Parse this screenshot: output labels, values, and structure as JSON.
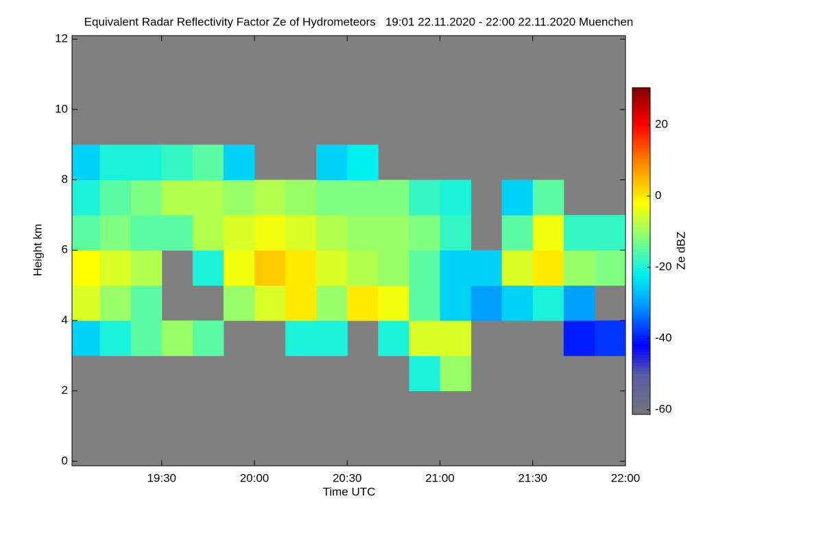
{
  "chart_data": {
    "type": "heatmap",
    "title": "Equivalent Radar Reflectivity Factor Ze of Hydrometeors   19:01 22.11.2020 - 22:00 22.11.2020 Muenchen",
    "x_label": "Time UTC",
    "y_label": "Height km",
    "colorbar_label": "Ze dBZ",
    "xlim": [
      1141,
      1320
    ],
    "xticks": [
      {
        "value": 1170,
        "label": "19:30"
      },
      {
        "value": 1200,
        "label": "20:00"
      },
      {
        "value": 1230,
        "label": "20:30"
      },
      {
        "value": 1260,
        "label": "21:00"
      },
      {
        "value": 1290,
        "label": "21:30"
      },
      {
        "value": 1320,
        "label": "22:00"
      }
    ],
    "ylim": [
      -0.13,
      12.1
    ],
    "yticks": [
      0,
      2,
      4,
      6,
      8,
      10,
      12
    ],
    "zlim": [
      -61.3,
      30.4
    ],
    "zticks": [
      -60,
      -40,
      -20,
      0,
      20
    ],
    "background_color": "#808080",
    "colormap": [
      {
        "value": -61.3,
        "color": "#767676"
      },
      {
        "value": -50,
        "color": "#5a5aa8"
      },
      {
        "value": -42,
        "color": "#0000ff"
      },
      {
        "value": -30,
        "color": "#00a0ff"
      },
      {
        "value": -22,
        "color": "#00f0f0"
      },
      {
        "value": -12,
        "color": "#80ff80"
      },
      {
        "value": -2,
        "color": "#ffff00"
      },
      {
        "value": 10,
        "color": "#ff8000"
      },
      {
        "value": 20,
        "color": "#ff0000"
      },
      {
        "value": 30.4,
        "color": "#800000"
      }
    ],
    "x_edges": [
      1141,
      1150,
      1160,
      1170,
      1180,
      1190,
      1200,
      1210,
      1220,
      1230,
      1240,
      1250,
      1260,
      1270,
      1280,
      1290,
      1300,
      1310,
      1320
    ],
    "y_edges": [
      0,
      1,
      2,
      3,
      4,
      5,
      6,
      7,
      8,
      9,
      10,
      11,
      12
    ],
    "z": [
      [
        null,
        null,
        null,
        null,
        null,
        null,
        null,
        null,
        null,
        null,
        null,
        null,
        null,
        null,
        null,
        null,
        null,
        null
      ],
      [
        null,
        null,
        null,
        null,
        null,
        null,
        null,
        null,
        null,
        null,
        null,
        null,
        null,
        null,
        null,
        null,
        null,
        null
      ],
      [
        null,
        null,
        null,
        null,
        null,
        null,
        null,
        null,
        null,
        null,
        null,
        -20,
        -10,
        null,
        null,
        null,
        null,
        null
      ],
      [
        -25,
        -20,
        -15,
        -10,
        -15,
        null,
        null,
        -20,
        -20,
        null,
        -20,
        -5,
        -5,
        null,
        null,
        null,
        -40,
        -38
      ],
      [
        -5,
        -10,
        -15,
        null,
        null,
        -10,
        -5,
        0,
        -10,
        0,
        -3,
        -15,
        -25,
        -30,
        -25,
        -20,
        -30,
        null
      ],
      [
        -2,
        -5,
        -8,
        null,
        -20,
        -3,
        3,
        0,
        -5,
        -8,
        -10,
        -15,
        -25,
        -25,
        -5,
        0,
        -10,
        -12
      ],
      [
        -15,
        -12,
        -15,
        -15,
        -8,
        -5,
        -3,
        -5,
        -8,
        -10,
        -10,
        -12,
        -18,
        null,
        -15,
        -3,
        -18,
        -18
      ],
      [
        -20,
        -15,
        -12,
        -8,
        -8,
        -10,
        -8,
        -10,
        -12,
        -12,
        -12,
        -18,
        -20,
        null,
        -25,
        -15,
        null,
        null
      ],
      [
        -25,
        -20,
        -20,
        -18,
        -15,
        -25,
        null,
        null,
        -25,
        -22,
        null,
        null,
        null,
        null,
        null,
        null,
        null,
        null
      ],
      [
        null,
        null,
        null,
        null,
        null,
        null,
        null,
        null,
        null,
        null,
        null,
        null,
        null,
        null,
        null,
        null,
        null,
        null
      ],
      [
        null,
        null,
        null,
        null,
        null,
        null,
        null,
        null,
        null,
        null,
        null,
        null,
        null,
        null,
        null,
        null,
        null,
        null
      ],
      [
        null,
        null,
        null,
        null,
        null,
        null,
        null,
        null,
        null,
        null,
        null,
        null,
        null,
        null,
        null,
        null,
        null,
        null
      ]
    ]
  }
}
